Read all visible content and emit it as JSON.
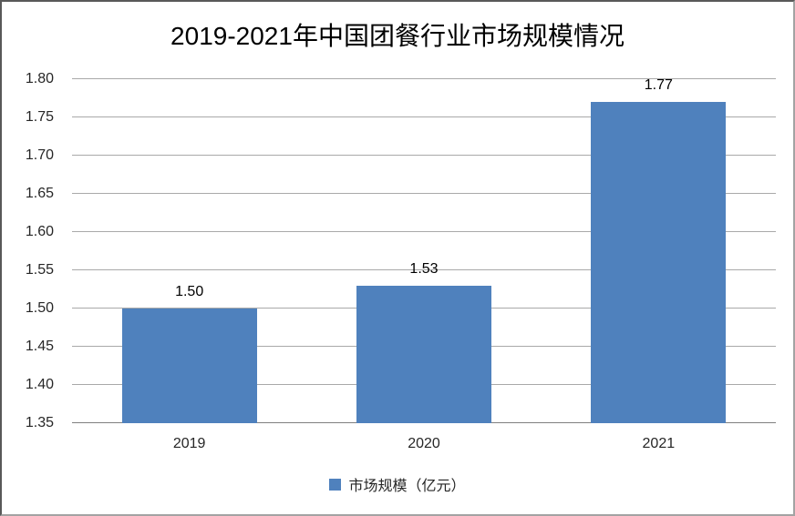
{
  "page": {
    "background": "#FFFFFF",
    "border_color_dark": "#595959",
    "border_color_light": "#A3A3A3"
  },
  "chart_data": {
    "type": "bar",
    "title": "2019-2021年中国团餐行业市场规模情况",
    "categories": [
      "2019",
      "2020",
      "2021"
    ],
    "series": [
      {
        "name": "市场规模（亿元）",
        "color": "#4F81BD",
        "values": [
          1.5,
          1.53,
          1.77
        ]
      }
    ],
    "data_labels": [
      "1.50",
      "1.53",
      "1.77"
    ],
    "xlabel": "",
    "ylabel": "",
    "ylim": [
      1.35,
      1.8
    ],
    "ytick_step": 0.05,
    "ytick_labels": [
      "1.35",
      "1.40",
      "1.45",
      "1.50",
      "1.55",
      "1.60",
      "1.65",
      "1.70",
      "1.75",
      "1.80"
    ],
    "grid": true,
    "gridline_color": "#A9A9A9",
    "axis_line_color": "#7F7F7F",
    "legend": {
      "position": "bottom",
      "items": [
        {
          "label": "市场规模（亿元）",
          "color": "#4F81BD"
        }
      ]
    }
  }
}
